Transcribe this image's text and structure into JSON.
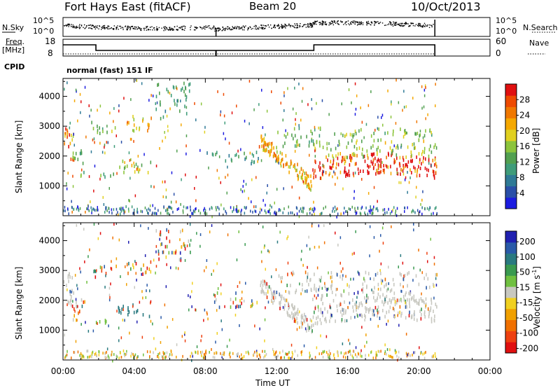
{
  "header": {
    "station": "Fort Hays East (fitACF)",
    "beam": "Beam 20",
    "date": "10/Oct/2013"
  },
  "top_panels": {
    "nsky_label": "N.Sky",
    "nsearch_label": "N.Search",
    "nsky_ticks": [
      "10^5",
      "10^0"
    ],
    "nsearch_ticks": [
      "10^5",
      "10^0"
    ],
    "freq_label_1": "Freq.",
    "freq_label_2": "[MHz]",
    "freq_ticks": [
      "18",
      "8"
    ],
    "nave_label": "Nave",
    "nave_ticks": [
      "60",
      "0"
    ],
    "cpid_label": "CPID",
    "cpid_text": "normal (fast) 151 IF"
  },
  "colors": {
    "power_scale": [
      "#1c1ce0",
      "#2a4fa8",
      "#2f7a96",
      "#3f9c7a",
      "#52a050",
      "#8cc43c",
      "#e0d020",
      "#f5a800",
      "#f07800",
      "#ee4a00",
      "#e01010"
    ],
    "velocity_scale": [
      "#2020b0",
      "#2a5aa8",
      "#2a7a80",
      "#3a9a50",
      "#70c040",
      "#c8c8c0",
      "#f0d020",
      "#f0a000",
      "#f07000",
      "#ee4010",
      "#e01010"
    ],
    "ground_scatter": "#c8c8c0"
  },
  "chart_data": [
    {
      "type": "heatmap",
      "name": "power-panel",
      "xlabel": "",
      "ylabel": "Slant Range [km]",
      "x_ticks": [
        "00:00",
        "04:00",
        "08:00",
        "12:00",
        "16:00",
        "20:00",
        "00:00"
      ],
      "xlim": [
        0,
        24
      ],
      "ylim": [
        0,
        4600
      ],
      "y_ticks": [
        1000,
        2000,
        3000,
        4000
      ],
      "colorbar": {
        "label": "Power [dB]",
        "ticks": [
          "4",
          "8",
          "12",
          "16",
          "20",
          "24",
          "28"
        ],
        "range": [
          0,
          30
        ]
      },
      "scatter_regions": [
        {
          "t0": 0.0,
          "t1": 0.6,
          "r0": 1900,
          "r1": 3000,
          "intensity": 0.95
        },
        {
          "t0": 0.4,
          "t1": 1.2,
          "r0": 1300,
          "r1": 2300,
          "intensity": 0.5
        },
        {
          "t0": 1.5,
          "t1": 3.0,
          "r0": 2800,
          "r1": 3200,
          "intensity": 0.55
        },
        {
          "t0": 3.5,
          "t1": 5.0,
          "r0": 2900,
          "r1": 3400,
          "intensity": 0.75
        },
        {
          "t0": 1.8,
          "t1": 3.0,
          "r0": 1200,
          "r1": 1450,
          "intensity": 0.45
        },
        {
          "t0": 3.0,
          "t1": 5.0,
          "r0": 1500,
          "r1": 1900,
          "intensity": 0.65
        },
        {
          "t0": 5.2,
          "t1": 7.2,
          "r0": 3300,
          "r1": 4500,
          "intensity": 0.4
        },
        {
          "t0": 8.0,
          "t1": 11.0,
          "r0": 1800,
          "r1": 2300,
          "intensity": 0.35
        },
        {
          "t0": 11.0,
          "t1": 14.0,
          "r0": 1000,
          "r1": 2600,
          "intensity": 0.8
        },
        {
          "t0": 14.0,
          "t1": 21.0,
          "r0": 1100,
          "r1": 2000,
          "intensity": 1.0
        },
        {
          "t0": 14.0,
          "t1": 21.0,
          "r0": 2000,
          "r1": 2600,
          "intensity": 0.6
        },
        {
          "t0": 15.0,
          "t1": 21.0,
          "r0": 2700,
          "r1": 3000,
          "intensity": 0.55
        },
        {
          "t0": 12.0,
          "t1": 14.5,
          "r0": 2300,
          "r1": 3000,
          "intensity": 0.5
        }
      ]
    },
    {
      "type": "heatmap",
      "name": "velocity-panel",
      "xlabel": "Time UT",
      "ylabel": "Slant Range [km]",
      "x_ticks": [
        "00:00",
        "04:00",
        "08:00",
        "12:00",
        "16:00",
        "20:00",
        "00:00"
      ],
      "xlim": [
        0,
        24
      ],
      "ylim": [
        0,
        4600
      ],
      "y_ticks": [
        1000,
        2000,
        3000,
        4000
      ],
      "colorbar": {
        "label": "Velocity [m s^-1]",
        "ticks": [
          "200",
          "100",
          "50",
          "15",
          "-15",
          "-50",
          "-100",
          "-200"
        ],
        "range": [
          -250,
          250
        ]
      }
    }
  ]
}
